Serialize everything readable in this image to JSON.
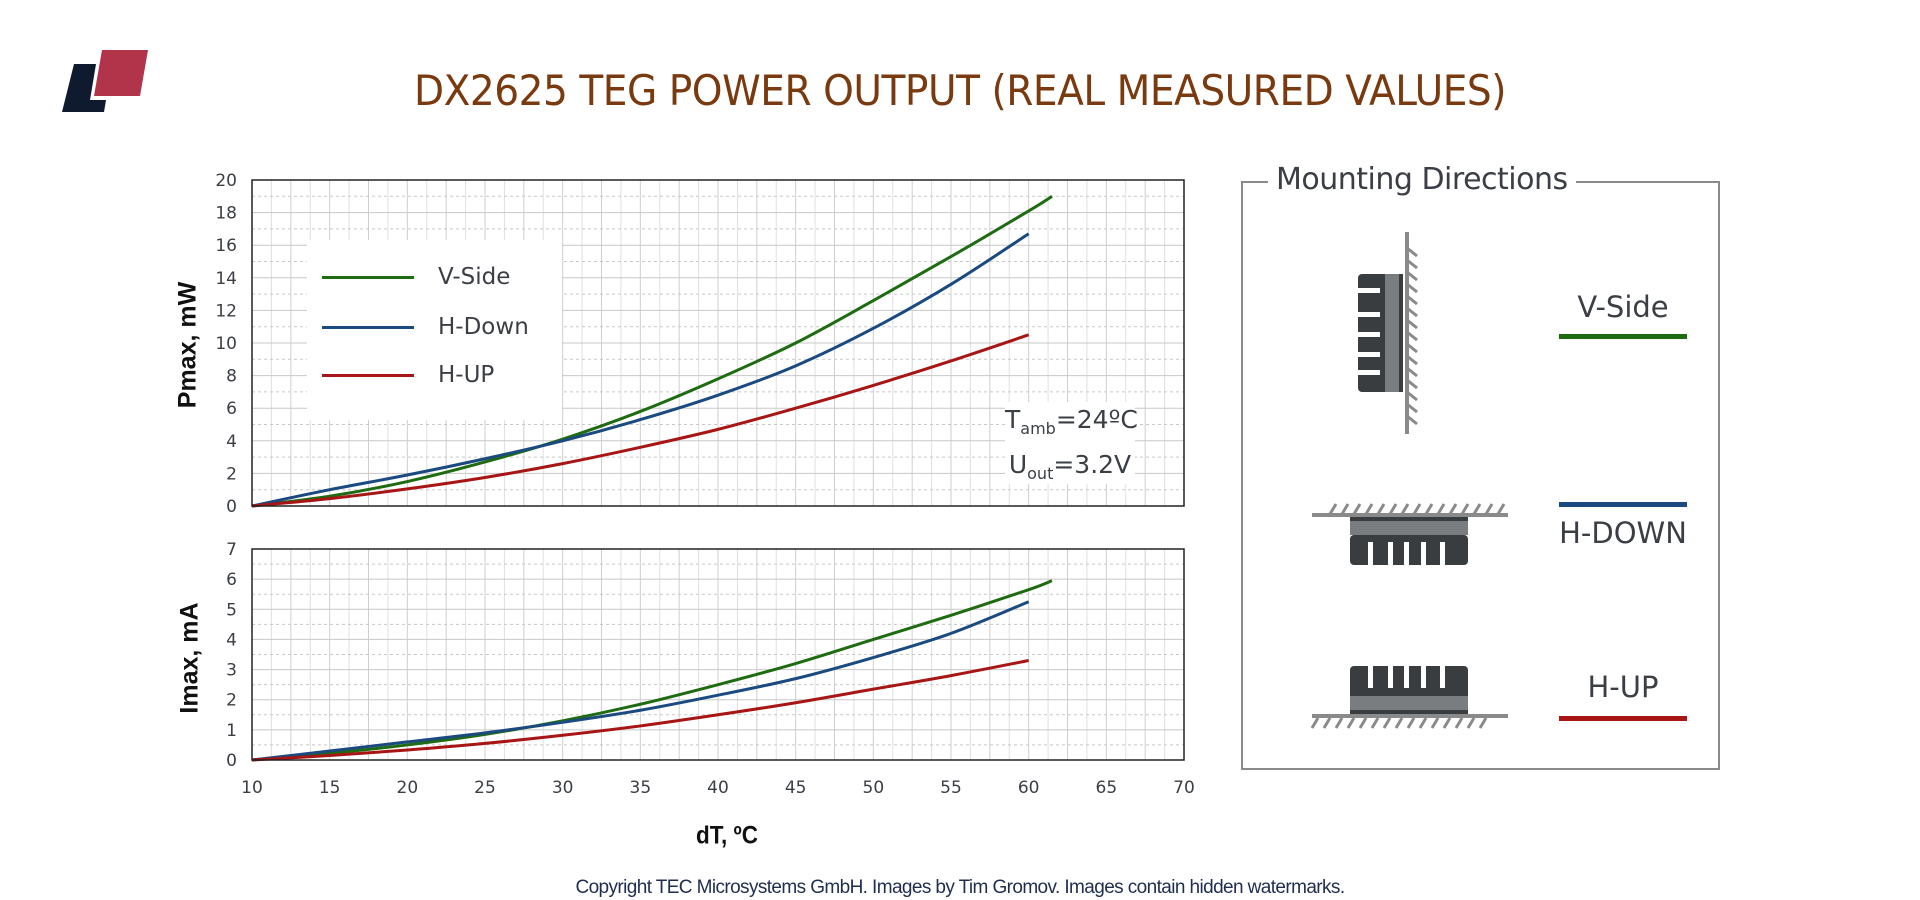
{
  "title": "DX2625 TEG POWER OUTPUT (REAL MEASURED VALUES)",
  "logo": {
    "name": "brand-logo",
    "colors": {
      "dark": "#0f1a2e",
      "red": "#b1344a"
    }
  },
  "annotation": {
    "tamb_prefix": "T",
    "tamb_sub": "amb",
    "tamb_value": "=24ºC",
    "uout_prefix": "U",
    "uout_sub": "out",
    "uout_value": "=3.2V"
  },
  "mounting": {
    "title": "Mounting Directions",
    "items": [
      {
        "label": "V-Side",
        "color": "#1e6b12",
        "icon": "vertical-side-mount-icon"
      },
      {
        "label": "H-DOWN",
        "color": "#1a4a80",
        "icon": "horizontal-down-mount-icon"
      },
      {
        "label": "H-UP",
        "color": "#a81515",
        "icon": "horizontal-up-mount-icon"
      }
    ]
  },
  "copyright": "Copyright TEC Microsystems GmbH. Images by Tim Gromov. Images contain hidden watermarks.",
  "chart_data": [
    {
      "type": "line",
      "title": "Pmax vs dT",
      "xlabel": "dT, ºC",
      "ylabel": "Pmax, mW",
      "xlim": [
        10,
        70
      ],
      "ylim": [
        0,
        20
      ],
      "xticks": [
        10,
        15,
        20,
        25,
        30,
        35,
        40,
        45,
        50,
        55,
        60,
        65,
        70
      ],
      "yticks": [
        0,
        2,
        4,
        6,
        8,
        10,
        12,
        14,
        16,
        18,
        20
      ],
      "grid": true,
      "legend_position": "upper-left",
      "x": [
        10,
        15,
        20,
        25,
        30,
        35,
        40,
        45,
        50,
        55,
        60
      ],
      "series": [
        {
          "name": "V-Side",
          "color": "#1e6b12",
          "x": [
            10,
            15,
            20,
            25,
            30,
            35,
            40,
            45,
            50,
            55,
            60,
            61.5
          ],
          "values": [
            0,
            0.6,
            1.5,
            2.7,
            4.1,
            5.8,
            7.8,
            10.0,
            12.6,
            15.3,
            18.1,
            19.0
          ]
        },
        {
          "name": "H-Down",
          "color": "#1a4a80",
          "x": [
            10,
            15,
            20,
            25,
            30,
            35,
            40,
            45,
            50,
            55,
            60
          ],
          "values": [
            0,
            1.0,
            1.9,
            2.9,
            4.0,
            5.3,
            6.8,
            8.6,
            10.9,
            13.6,
            16.7
          ]
        },
        {
          "name": "H-UP",
          "color": "#a81515",
          "x": [
            10,
            15,
            20,
            25,
            30,
            35,
            40,
            45,
            50,
            55,
            60
          ],
          "values": [
            0,
            0.45,
            1.05,
            1.75,
            2.6,
            3.6,
            4.7,
            6.0,
            7.4,
            8.9,
            10.5
          ]
        }
      ],
      "annotations": [
        "Tamb=24ºC",
        "Uout=3.2V"
      ]
    },
    {
      "type": "line",
      "title": "Imax vs dT",
      "xlabel": "dT, ºC",
      "ylabel": "Imax, mA",
      "xlim": [
        10,
        70
      ],
      "ylim": [
        0,
        7
      ],
      "xticks": [
        10,
        15,
        20,
        25,
        30,
        35,
        40,
        45,
        50,
        55,
        60,
        65,
        70
      ],
      "yticks": [
        0,
        1,
        2,
        3,
        4,
        5,
        6,
        7
      ],
      "grid": true,
      "series": [
        {
          "name": "V-Side",
          "color": "#1e6b12",
          "x": [
            10,
            15,
            20,
            25,
            30,
            35,
            40,
            45,
            50,
            55,
            60,
            61.5
          ],
          "values": [
            0,
            0.22,
            0.5,
            0.85,
            1.3,
            1.85,
            2.5,
            3.2,
            4.0,
            4.8,
            5.65,
            5.95
          ]
        },
        {
          "name": "H-Down",
          "color": "#1a4a80",
          "x": [
            10,
            15,
            20,
            25,
            30,
            35,
            40,
            45,
            50,
            55,
            60
          ],
          "values": [
            0,
            0.3,
            0.6,
            0.9,
            1.25,
            1.65,
            2.15,
            2.7,
            3.4,
            4.2,
            5.25
          ]
        },
        {
          "name": "H-UP",
          "color": "#a81515",
          "x": [
            10,
            15,
            20,
            25,
            30,
            35,
            40,
            45,
            50,
            55,
            60
          ],
          "values": [
            0,
            0.15,
            0.33,
            0.55,
            0.82,
            1.13,
            1.5,
            1.9,
            2.35,
            2.8,
            3.3
          ]
        }
      ]
    }
  ]
}
